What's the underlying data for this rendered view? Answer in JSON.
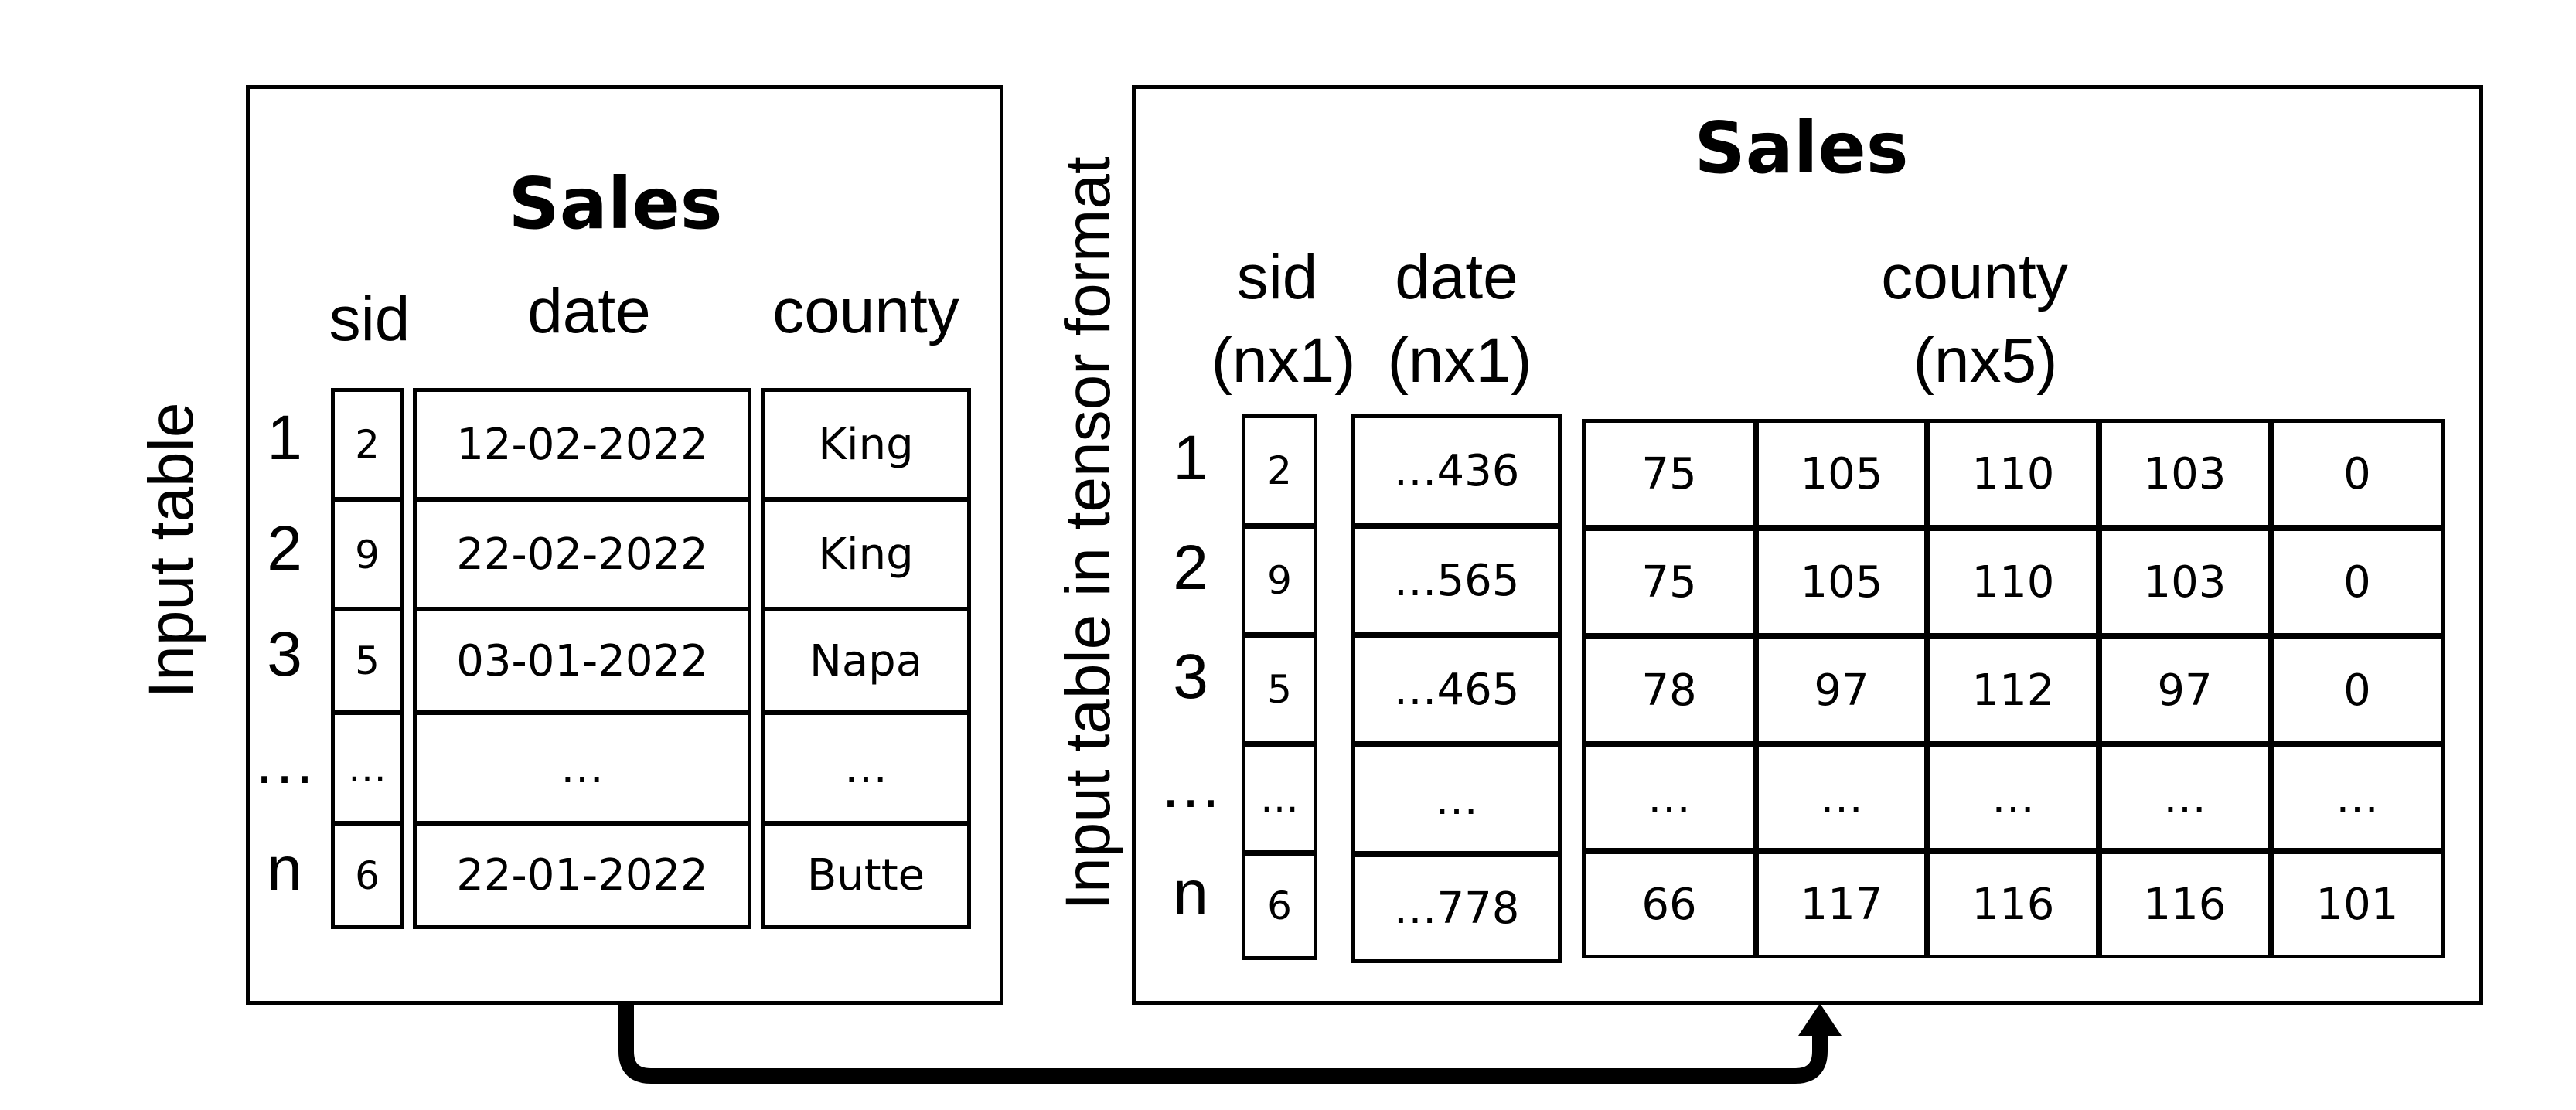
{
  "input_table": {
    "side_label": "Input table",
    "title": "Sales",
    "headers": {
      "sid": "sid",
      "date": "date",
      "county": "county"
    },
    "row_labels": [
      "1",
      "2",
      "3",
      "…",
      "n"
    ],
    "sid": [
      "2",
      "9",
      "5",
      "…",
      "6"
    ],
    "date": [
      "12-02-2022",
      "22-02-2022",
      "03-01-2022",
      "…",
      "22-01-2022"
    ],
    "county": [
      "King",
      "King",
      "Napa",
      "…",
      "Butte"
    ]
  },
  "tensor_table": {
    "side_label": "Input table in tensor format",
    "title": "Sales",
    "headers": {
      "sid": "sid",
      "sid_shape": "(nx1)",
      "date": "date",
      "date_shape": "(nx1)",
      "county": "county",
      "county_shape": "(nx5)"
    },
    "row_labels": [
      "1",
      "2",
      "3",
      "…",
      "n"
    ],
    "sid": [
      "2",
      "9",
      "5",
      "…",
      "6"
    ],
    "date": [
      "…436",
      "…565",
      "…465",
      "…",
      "…778"
    ],
    "county": [
      [
        "75",
        "105",
        "110",
        "103",
        "0"
      ],
      [
        "75",
        "105",
        "110",
        "103",
        "0"
      ],
      [
        "78",
        "97",
        "112",
        "97",
        "0"
      ],
      [
        "…",
        "…",
        "…",
        "…",
        "…"
      ],
      [
        "66",
        "117",
        "116",
        "116",
        "101"
      ]
    ]
  },
  "arrow": {
    "direction": "input-table-to-tensor-format"
  }
}
